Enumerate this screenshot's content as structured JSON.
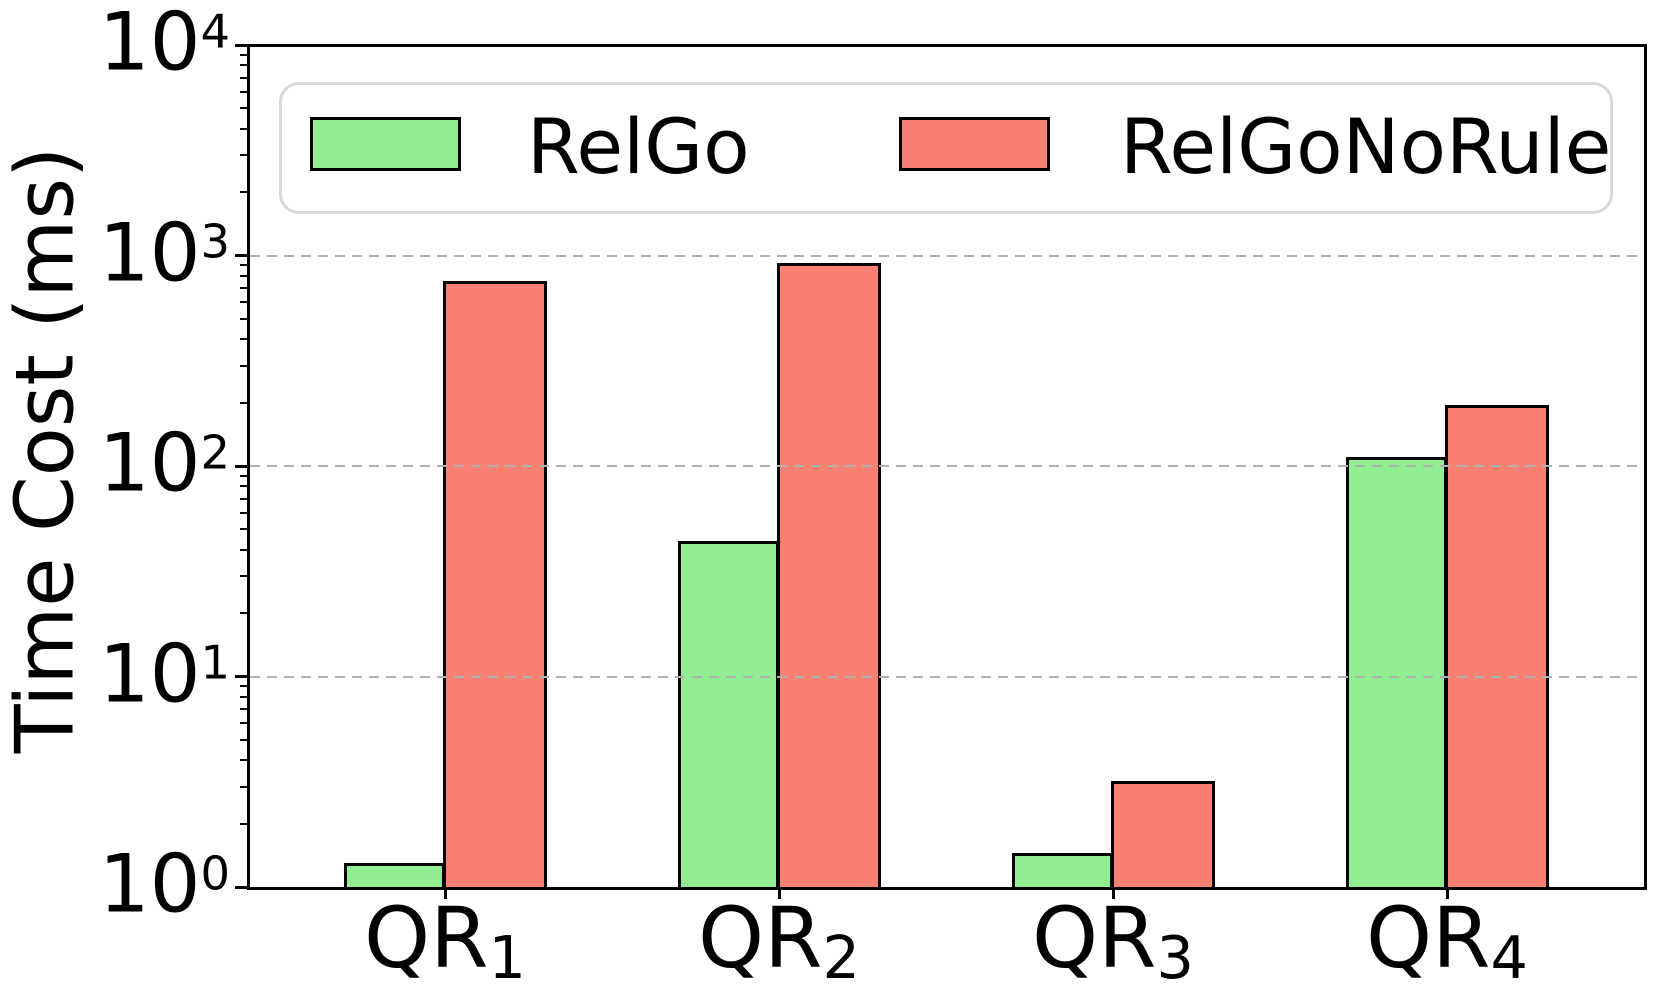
{
  "chart_data": {
    "type": "bar",
    "yscale": "log",
    "ylabel": "Time Cost (ms)",
    "ylim": [
      1,
      10000
    ],
    "categories": [
      {
        "base": "QR",
        "sub": "1"
      },
      {
        "base": "QR",
        "sub": "2"
      },
      {
        "base": "QR",
        "sub": "3"
      },
      {
        "base": "QR",
        "sub": "4"
      }
    ],
    "series": [
      {
        "name": "RelGo",
        "color": "#90EE90",
        "values": [
          1.3,
          44,
          1.45,
          110
        ]
      },
      {
        "name": "RelGoNoRule",
        "color": "#FA8072",
        "values": [
          760,
          920,
          3.2,
          195
        ]
      }
    ],
    "y_ticks": [
      {
        "base": "10",
        "exp": "0"
      },
      {
        "base": "10",
        "exp": "1"
      },
      {
        "base": "10",
        "exp": "2"
      },
      {
        "base": "10",
        "exp": "3"
      },
      {
        "base": "10",
        "exp": "4"
      }
    ],
    "grid": {
      "axis": "y",
      "style": "dashed",
      "color": "#b0b0b0",
      "above_bars": true
    },
    "legend": {
      "position": "upper center"
    },
    "bar_edge_color": "#000000",
    "minor_ticks_per_decade": [
      2,
      3,
      4,
      5,
      6,
      7,
      8,
      9
    ]
  }
}
